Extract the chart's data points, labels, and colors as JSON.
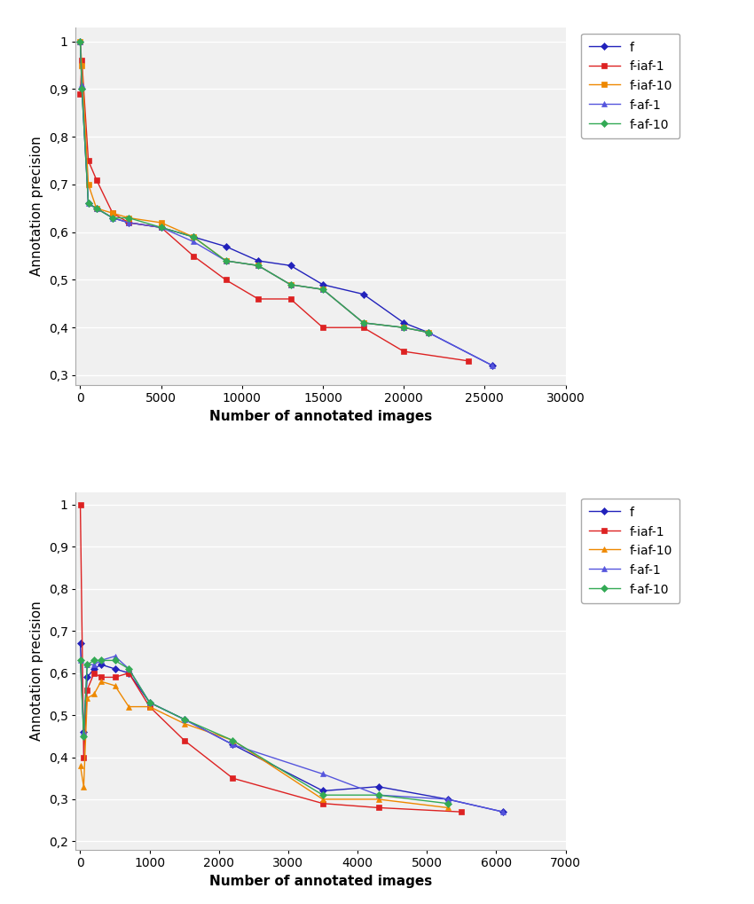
{
  "top_plot": {
    "series_order": [
      "f",
      "f-iaf-1",
      "f-iaf-10",
      "f-af-1",
      "f-af-10"
    ],
    "series": {
      "f": {
        "x": [
          1,
          100,
          500,
          1000,
          2000,
          3000,
          5000,
          7000,
          9000,
          11000,
          13000,
          15000,
          17500,
          20000,
          21500,
          25500
        ],
        "y": [
          1.0,
          0.9,
          0.66,
          0.65,
          0.63,
          0.62,
          0.61,
          0.59,
          0.57,
          0.54,
          0.53,
          0.49,
          0.47,
          0.41,
          0.39,
          0.32
        ],
        "color": "#2222bb",
        "marker": "D",
        "label": "f"
      },
      "f-iaf-1": {
        "x": [
          1,
          100,
          500,
          1000,
          2000,
          3000,
          5000,
          7000,
          9000,
          11000,
          13000,
          15000,
          17500,
          20000,
          24000
        ],
        "y": [
          0.89,
          0.96,
          0.75,
          0.71,
          0.64,
          0.62,
          0.61,
          0.55,
          0.5,
          0.46,
          0.46,
          0.4,
          0.4,
          0.35,
          0.33
        ],
        "color": "#dd2222",
        "marker": "s",
        "label": "f-iaf-1"
      },
      "f-iaf-10": {
        "x": [
          1,
          100,
          500,
          1000,
          2000,
          3000,
          5000,
          7000,
          9000,
          11000,
          13000,
          15000,
          17500,
          20000,
          21500
        ],
        "y": [
          1.0,
          0.95,
          0.7,
          0.65,
          0.64,
          0.63,
          0.62,
          0.59,
          0.54,
          0.53,
          0.49,
          0.48,
          0.41,
          0.4,
          0.39
        ],
        "color": "#ee8800",
        "marker": "s",
        "label": "f-iaf-10"
      },
      "f-af-1": {
        "x": [
          1,
          100,
          500,
          1000,
          2000,
          3000,
          5000,
          7000,
          9000,
          11000,
          13000,
          15000,
          17500,
          20000,
          21500,
          25500
        ],
        "y": [
          1.0,
          0.91,
          0.66,
          0.65,
          0.63,
          0.62,
          0.61,
          0.58,
          0.54,
          0.53,
          0.49,
          0.48,
          0.41,
          0.4,
          0.39,
          0.32
        ],
        "color": "#5555dd",
        "marker": "^",
        "label": "f-af-1"
      },
      "f-af-10": {
        "x": [
          1,
          100,
          500,
          1000,
          2000,
          3000,
          5000,
          7000,
          9000,
          11000,
          13000,
          15000,
          17500,
          20000,
          21500
        ],
        "y": [
          1.0,
          0.9,
          0.66,
          0.65,
          0.63,
          0.63,
          0.61,
          0.59,
          0.54,
          0.53,
          0.49,
          0.48,
          0.41,
          0.4,
          0.39
        ],
        "color": "#33aa55",
        "marker": "D",
        "label": "f-af-10"
      }
    },
    "ylabel": "Annotation precision",
    "xlabel": "Number of annotated images",
    "ylim": [
      0.28,
      1.03
    ],
    "xlim": [
      -300,
      30000
    ],
    "yticks": [
      0.3,
      0.4,
      0.5,
      0.6,
      0.7,
      0.8,
      0.9,
      1.0
    ],
    "xticks": [
      0,
      5000,
      10000,
      15000,
      20000,
      25000,
      30000
    ]
  },
  "bottom_plot": {
    "series_order": [
      "f",
      "f-iaf-1",
      "f-iaf-10",
      "f-af-1",
      "f-af-10"
    ],
    "series": {
      "f": {
        "x": [
          1,
          50,
          100,
          200,
          300,
          500,
          700,
          1000,
          1500,
          2200,
          3500,
          4300,
          5300,
          6100
        ],
        "y": [
          0.67,
          0.46,
          0.59,
          0.61,
          0.62,
          0.61,
          0.6,
          0.53,
          0.49,
          0.43,
          0.32,
          0.33,
          0.3,
          0.27
        ],
        "color": "#2222bb",
        "marker": "D",
        "label": "f"
      },
      "f-iaf-1": {
        "x": [
          1,
          50,
          100,
          200,
          300,
          500,
          700,
          1000,
          1500,
          2200,
          3500,
          4300,
          5500
        ],
        "y": [
          1.0,
          0.4,
          0.56,
          0.6,
          0.59,
          0.59,
          0.6,
          0.52,
          0.44,
          0.35,
          0.29,
          0.28,
          0.27
        ],
        "color": "#dd2222",
        "marker": "s",
        "label": "f-iaf-1"
      },
      "f-iaf-10": {
        "x": [
          1,
          50,
          100,
          200,
          300,
          500,
          700,
          1000,
          1500,
          2200,
          3500,
          4300,
          5300
        ],
        "y": [
          0.38,
          0.33,
          0.54,
          0.55,
          0.58,
          0.57,
          0.52,
          0.52,
          0.48,
          0.44,
          0.3,
          0.3,
          0.28
        ],
        "color": "#ee8800",
        "marker": "^",
        "label": "f-iaf-10"
      },
      "f-af-1": {
        "x": [
          1,
          50,
          100,
          200,
          300,
          500,
          700,
          1000,
          1500,
          2200,
          3500,
          4300,
          5300,
          6100
        ],
        "y": [
          0.63,
          0.46,
          0.62,
          0.62,
          0.63,
          0.64,
          0.61,
          0.53,
          0.49,
          0.43,
          0.36,
          0.31,
          0.3,
          0.27
        ],
        "color": "#5555dd",
        "marker": "^",
        "label": "f-af-1"
      },
      "f-af-10": {
        "x": [
          1,
          50,
          100,
          200,
          300,
          500,
          700,
          1000,
          1500,
          2200,
          3500,
          4300,
          5300
        ],
        "y": [
          0.63,
          0.45,
          0.62,
          0.63,
          0.63,
          0.63,
          0.61,
          0.53,
          0.49,
          0.44,
          0.31,
          0.31,
          0.29
        ],
        "color": "#33aa55",
        "marker": "D",
        "label": "f-af-10"
      }
    },
    "ylabel": "Annotation precision",
    "xlabel": "Number of annotated images",
    "ylim": [
      0.18,
      1.03
    ],
    "xlim": [
      -70,
      7000
    ],
    "yticks": [
      0.2,
      0.3,
      0.4,
      0.5,
      0.6,
      0.7,
      0.8,
      0.9,
      1.0
    ],
    "xticks": [
      0,
      1000,
      2000,
      3000,
      4000,
      5000,
      6000,
      7000
    ]
  },
  "background_color": "#ffffff",
  "plot_bg_color": "#f0f0f0",
  "grid_color": "#ffffff",
  "marker_size": 4,
  "line_width": 1.0
}
